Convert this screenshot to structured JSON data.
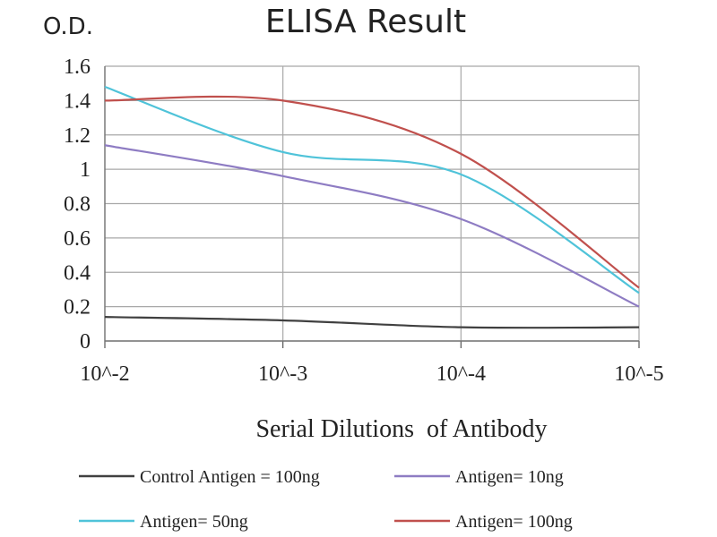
{
  "chart_data": {
    "type": "line",
    "title": "ELISA Result",
    "ylabel": "O.D.",
    "xlabel": "Serial Dilutions  of Antibody",
    "categories": [
      "10^-2",
      "10^-3",
      "10^-4",
      "10^-5"
    ],
    "ylim": [
      0,
      1.6
    ],
    "yticks": [
      "0",
      "0.2",
      "0.4",
      "0.6",
      "0.8",
      "1",
      "1.2",
      "1.4",
      "1.6"
    ],
    "grid": true,
    "legend_position": "bottom",
    "series": [
      {
        "name": "Control Antigen = 100ng",
        "color": "#404040",
        "values": [
          0.14,
          0.12,
          0.08,
          0.08
        ]
      },
      {
        "name": "Antigen= 10ng",
        "color": "#8e7cc3",
        "values": [
          1.14,
          0.96,
          0.71,
          0.2
        ]
      },
      {
        "name": "Antigen= 50ng",
        "color": "#4fc3d9",
        "values": [
          1.48,
          1.1,
          0.97,
          0.28
        ]
      },
      {
        "name": "Antigen= 100ng",
        "color": "#c0504d",
        "values": [
          1.4,
          1.4,
          1.09,
          0.31
        ]
      }
    ]
  }
}
